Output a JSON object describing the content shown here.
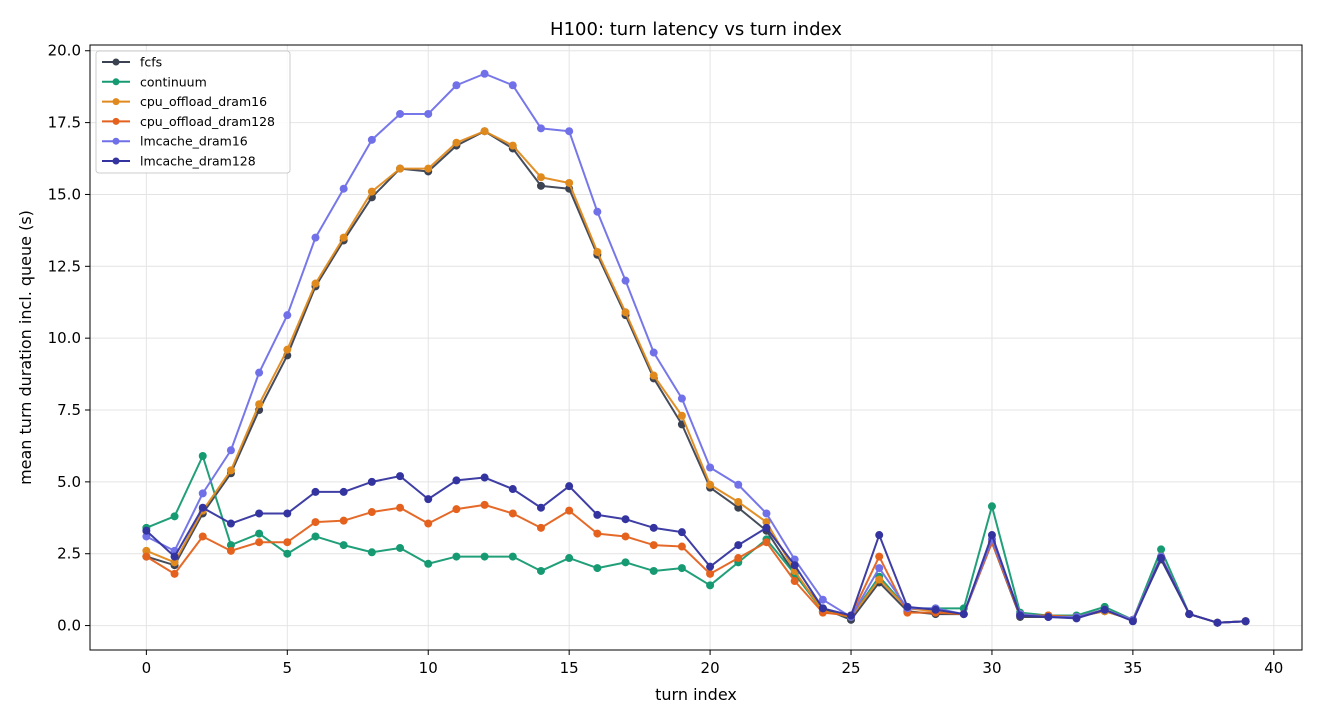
{
  "chart_data": {
    "type": "line",
    "title": "H100: turn latency vs turn index",
    "xlabel": "turn index",
    "ylabel": "mean turn duration incl. queue (s)",
    "xlim": [
      -2,
      41
    ],
    "ylim": [
      -0.85,
      20.2
    ],
    "xticks": [
      0,
      5,
      10,
      15,
      20,
      25,
      30,
      35,
      40
    ],
    "xtick_labels": [
      "0",
      "5",
      "10",
      "15",
      "20",
      "25",
      "30",
      "35",
      "40"
    ],
    "yticks": [
      0,
      2.5,
      5,
      7.5,
      10,
      12.5,
      15,
      17.5,
      20
    ],
    "ytick_labels": [
      "0.0",
      "2.5",
      "5.0",
      "7.5",
      "10.0",
      "12.5",
      "15.0",
      "17.5",
      "20.0"
    ],
    "grid": true,
    "legend_position": "top-left",
    "x": [
      0,
      1,
      2,
      3,
      4,
      5,
      6,
      7,
      8,
      9,
      10,
      11,
      12,
      13,
      14,
      15,
      16,
      17,
      18,
      19,
      20,
      21,
      22,
      23,
      24,
      25,
      26,
      27,
      28,
      29,
      30,
      31,
      32,
      33,
      34,
      35,
      36,
      37,
      38,
      39
    ],
    "series": [
      {
        "name": "fcfs",
        "color": "#3b4252",
        "values": [
          2.4,
          2.1,
          3.9,
          5.3,
          7.5,
          9.4,
          11.8,
          13.4,
          14.9,
          15.9,
          15.8,
          16.7,
          17.2,
          16.6,
          15.3,
          15.2,
          12.9,
          10.8,
          8.6,
          7.0,
          4.8,
          4.1,
          3.3,
          1.8,
          0.6,
          0.2,
          1.5,
          0.5,
          0.4,
          0.4,
          2.9,
          0.3,
          0.3,
          0.3,
          0.5,
          0.2,
          2.3,
          0.4,
          0.1,
          0.15
        ]
      },
      {
        "name": "continuum",
        "color": "#159a72",
        "values": [
          3.4,
          3.8,
          5.9,
          2.8,
          3.2,
          2.5,
          3.1,
          2.8,
          2.55,
          2.7,
          2.15,
          2.4,
          2.4,
          2.4,
          1.9,
          2.35,
          2.0,
          2.2,
          1.9,
          2.0,
          1.4,
          2.2,
          3.0,
          1.8,
          0.5,
          0.3,
          1.7,
          0.6,
          0.6,
          0.6,
          4.15,
          0.45,
          0.35,
          0.35,
          0.65,
          0.2,
          2.65,
          0.4,
          0.1,
          0.15
        ]
      },
      {
        "name": "cpu_offload_dram16",
        "color": "#e08a1e",
        "values": [
          2.6,
          2.2,
          4.0,
          5.4,
          7.7,
          9.6,
          11.9,
          13.5,
          15.1,
          15.9,
          15.9,
          16.8,
          17.2,
          16.7,
          15.6,
          15.4,
          13.0,
          10.9,
          8.7,
          7.3,
          4.9,
          4.3,
          3.6,
          1.9,
          0.5,
          0.3,
          1.6,
          0.6,
          0.5,
          0.4,
          3.0,
          0.4,
          0.3,
          0.3,
          0.5,
          0.2,
          2.4,
          0.4,
          0.1,
          0.15
        ]
      },
      {
        "name": "cpu_offload_dram128",
        "color": "#e4621e",
        "values": [
          2.4,
          1.8,
          3.1,
          2.6,
          2.9,
          2.9,
          3.6,
          3.65,
          3.95,
          4.1,
          3.55,
          4.05,
          4.2,
          3.9,
          3.4,
          4.0,
          3.2,
          3.1,
          2.8,
          2.75,
          1.8,
          2.35,
          2.9,
          1.55,
          0.45,
          0.35,
          2.4,
          0.45,
          0.45,
          0.4,
          2.9,
          0.35,
          0.35,
          0.3,
          0.55,
          0.2,
          2.4,
          0.4,
          0.1,
          0.15
        ]
      },
      {
        "name": "lmcache_dram16",
        "color": "#7070e8",
        "values": [
          3.1,
          2.6,
          4.6,
          6.1,
          8.8,
          10.8,
          13.5,
          15.2,
          16.9,
          17.8,
          17.8,
          18.8,
          19.2,
          18.8,
          17.3,
          17.2,
          14.4,
          12.0,
          9.5,
          7.9,
          5.5,
          4.9,
          3.9,
          2.3,
          0.9,
          0.3,
          2.0,
          0.6,
          0.6,
          0.4,
          3.0,
          0.4,
          0.3,
          0.3,
          0.55,
          0.2,
          2.4,
          0.4,
          0.1,
          0.15
        ]
      },
      {
        "name": "lmcache_dram128",
        "color": "#3434a0",
        "values": [
          3.3,
          2.4,
          4.1,
          3.55,
          3.9,
          3.9,
          4.65,
          4.65,
          5.0,
          5.2,
          4.4,
          5.05,
          5.15,
          4.75,
          4.1,
          4.85,
          3.85,
          3.7,
          3.4,
          3.25,
          2.05,
          2.8,
          3.4,
          2.1,
          0.6,
          0.35,
          3.15,
          0.65,
          0.55,
          0.4,
          3.15,
          0.35,
          0.3,
          0.25,
          0.55,
          0.15,
          2.35,
          0.4,
          0.1,
          0.15
        ]
      }
    ]
  }
}
